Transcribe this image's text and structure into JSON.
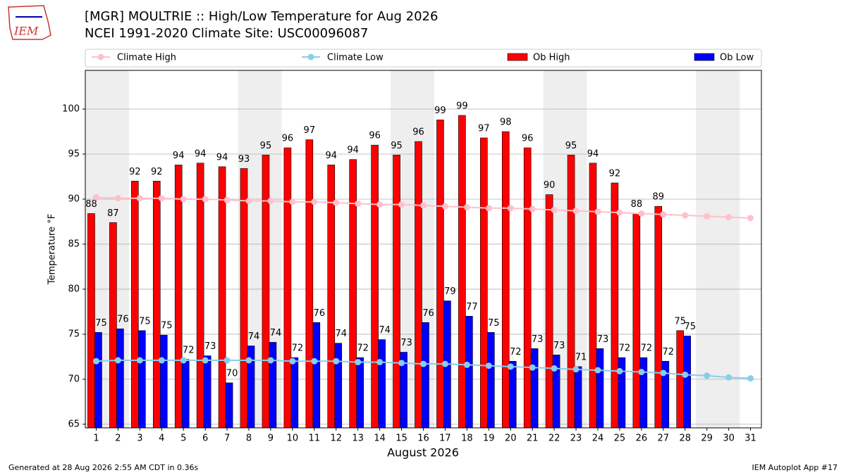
{
  "chart_data": {
    "type": "bar",
    "title": "[MGR] MOULTRIE :: High/Low Temperature for Aug 2026",
    "subtitle": "NCEI 1991-2020 Climate Site: USC00096087",
    "logo_text": "IEM",
    "x_label": "August 2026",
    "y_label": "Temperature °F",
    "footer_left": "Generated at 28 Aug 2026 2:55 AM CDT in 0.36s",
    "footer_right": "IEM Autoplot App #17",
    "x": [
      1,
      2,
      3,
      4,
      5,
      6,
      7,
      8,
      9,
      10,
      11,
      12,
      13,
      14,
      15,
      16,
      17,
      18,
      19,
      20,
      21,
      22,
      23,
      24,
      25,
      26,
      27,
      28,
      29,
      30,
      31
    ],
    "xlim": [
      0.5,
      31.5
    ],
    "xticks": [
      1,
      2,
      3,
      4,
      5,
      6,
      7,
      8,
      9,
      10,
      11,
      12,
      13,
      14,
      15,
      16,
      17,
      18,
      19,
      20,
      21,
      22,
      23,
      24,
      25,
      26,
      27,
      28,
      29,
      30,
      31
    ],
    "ylim": [
      64.6,
      104.3
    ],
    "yticks": [
      65,
      70,
      75,
      80,
      85,
      90,
      95,
      100
    ],
    "grid": true,
    "shaded_ranges": [
      [
        1,
        2
      ],
      [
        8,
        9
      ],
      [
        15,
        16
      ],
      [
        22,
        23
      ],
      [
        29,
        30
      ]
    ],
    "series": [
      {
        "name": "Climate High",
        "type": "line",
        "color": "#ffc0cb",
        "values": [
          90.2,
          90.1,
          90.1,
          90.1,
          90.0,
          90.0,
          89.9,
          89.8,
          89.8,
          89.7,
          89.7,
          89.6,
          89.5,
          89.4,
          89.4,
          89.3,
          89.2,
          89.1,
          89.0,
          89.0,
          88.9,
          88.8,
          88.7,
          88.6,
          88.5,
          88.4,
          88.3,
          88.2,
          88.1,
          88.0,
          87.9
        ]
      },
      {
        "name": "Climate Low",
        "type": "line",
        "color": "#87ceeb",
        "values": [
          72.0,
          72.1,
          72.1,
          72.1,
          72.1,
          72.1,
          72.1,
          72.1,
          72.1,
          72.0,
          72.0,
          72.0,
          71.9,
          71.9,
          71.8,
          71.7,
          71.7,
          71.6,
          71.5,
          71.4,
          71.3,
          71.2,
          71.1,
          71.0,
          70.9,
          70.8,
          70.7,
          70.5,
          70.4,
          70.2,
          70.1
        ]
      },
      {
        "name": "Ob High",
        "type": "bar",
        "color": "#ff0000",
        "values": [
          88.4,
          87.4,
          92.0,
          92.0,
          93.8,
          94.0,
          93.6,
          93.4,
          94.9,
          95.7,
          96.6,
          93.8,
          94.4,
          96.0,
          94.9,
          96.4,
          98.8,
          99.3,
          96.8,
          97.5,
          95.7,
          90.5,
          94.9,
          94.0,
          91.8,
          88.4,
          89.2,
          75.4,
          null,
          null,
          null
        ],
        "value_labels": [
          "88",
          "87",
          "92",
          "92",
          "94",
          "94",
          "94",
          "93",
          "95",
          "96",
          "97",
          "94",
          "94",
          "96",
          "95",
          "96",
          "99",
          "99",
          "97",
          "98",
          "96",
          "90",
          "95",
          "94",
          "92",
          "88",
          "89",
          "75",
          null,
          null,
          null
        ]
      },
      {
        "name": "Ob Low",
        "type": "bar",
        "color": "#0000ff",
        "values": [
          75.2,
          75.6,
          75.4,
          74.9,
          72.2,
          72.6,
          69.6,
          73.7,
          74.1,
          72.4,
          76.3,
          74.0,
          72.4,
          74.4,
          73.0,
          76.3,
          78.7,
          77.0,
          75.2,
          72.0,
          73.4,
          72.7,
          71.4,
          73.4,
          72.4,
          72.4,
          72.0,
          74.8,
          null,
          null,
          null
        ],
        "value_labels": [
          "75",
          "76",
          "75",
          "75",
          "72",
          "73",
          "70",
          "74",
          "74",
          "72",
          "76",
          "74",
          "72",
          "74",
          "73",
          "76",
          "79",
          "77",
          "75",
          "72",
          "73",
          "73",
          "71",
          "73",
          "72",
          "72",
          "72",
          "75",
          null,
          null,
          null
        ]
      }
    ]
  }
}
